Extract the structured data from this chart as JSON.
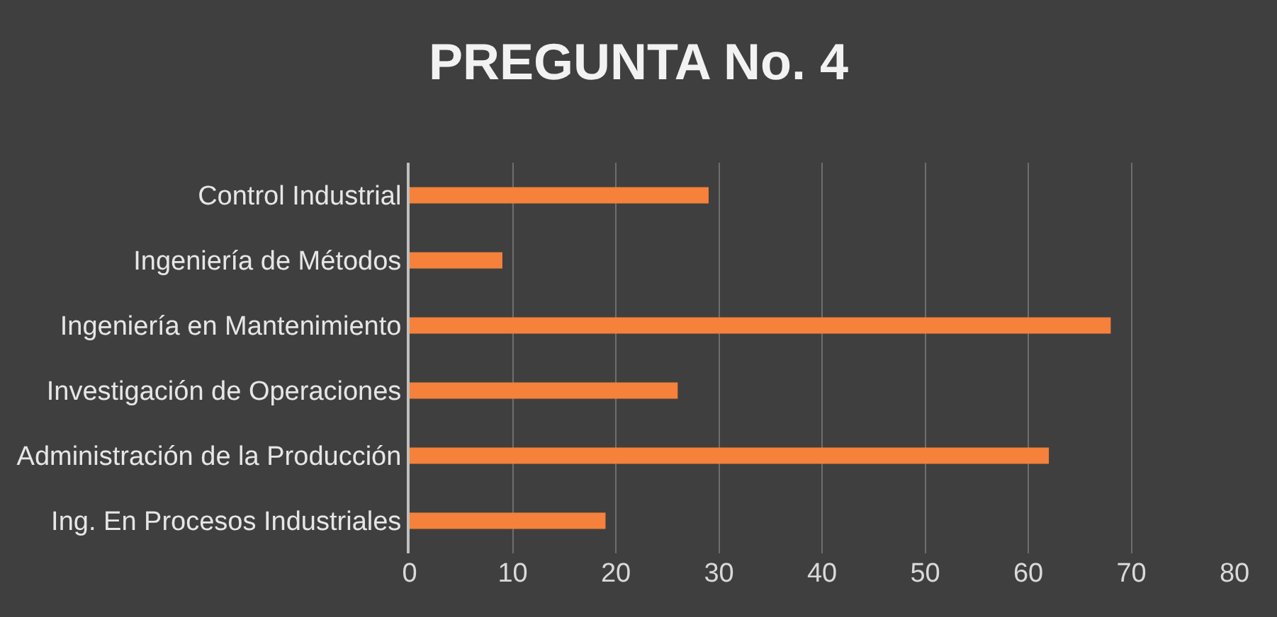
{
  "chart_data": {
    "type": "bar",
    "orientation": "horizontal",
    "title": "PREGUNTA No. 4",
    "categories": [
      "Control Industrial",
      "Ingeniería de Métodos",
      "Ingeniería en Mantenimiento",
      "Investigación de Operaciones",
      "Administración de la Producción",
      "Ing. En Procesos Industriales"
    ],
    "values": [
      29,
      9,
      68,
      26,
      62,
      19
    ],
    "color": "#f5813a",
    "xlim": [
      0,
      80
    ],
    "xticks": [
      0,
      10,
      20,
      30,
      40,
      50,
      60,
      70,
      80
    ],
    "grid": "x"
  }
}
